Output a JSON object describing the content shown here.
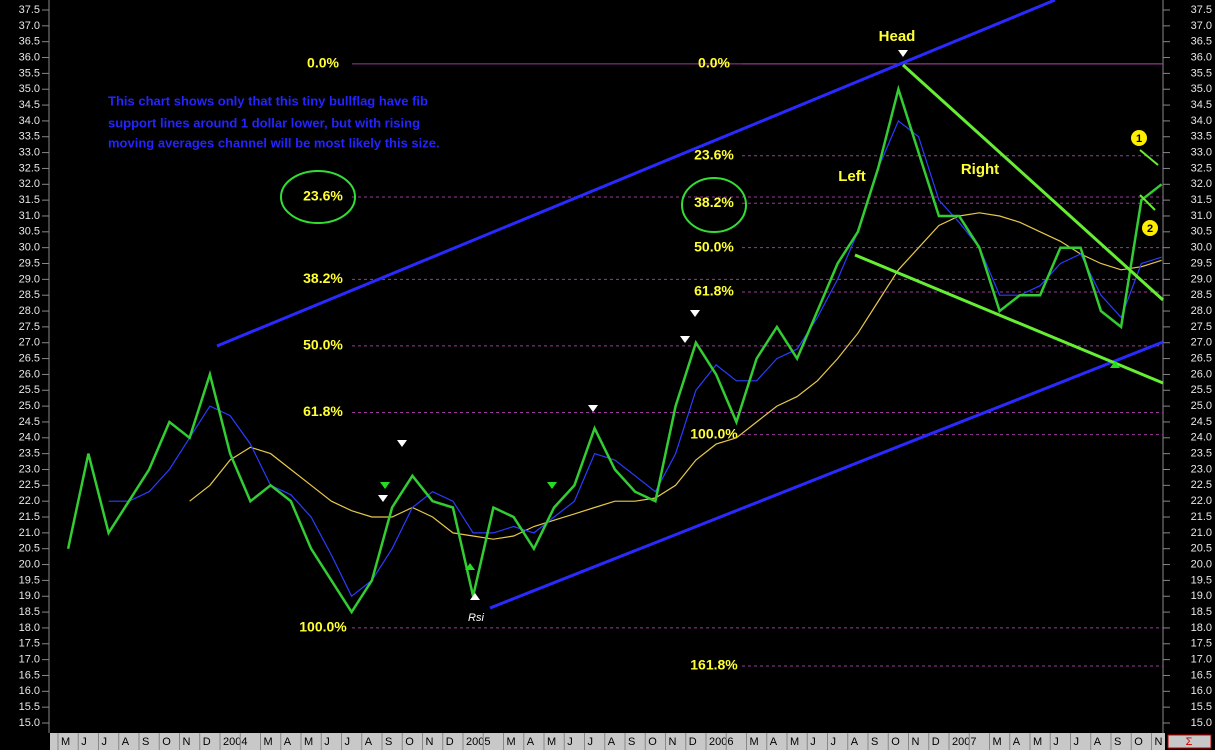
{
  "chart_data": {
    "type": "line",
    "categories": [
      "M",
      "J",
      "J",
      "A",
      "S",
      "O",
      "N",
      "D",
      "2004",
      null,
      "M",
      "A",
      "M",
      "J",
      "J",
      "A",
      "S",
      "O",
      "N",
      "D",
      "2005",
      null,
      "M",
      "A",
      "M",
      "J",
      "J",
      "A",
      "S",
      "O",
      "N",
      "D",
      "2006",
      null,
      "M",
      "A",
      "M",
      "J",
      "J",
      "A",
      "S",
      "O",
      "N",
      "D",
      "2007",
      null,
      "M",
      "A",
      "M",
      "J",
      "J",
      "A",
      "S",
      "O",
      "N"
    ],
    "series": [
      {
        "color": "#33cc33",
        "values": [
          20.5,
          23.5,
          21.0,
          22.0,
          23.0,
          24.5,
          24.0,
          26.0,
          23.5,
          22.0,
          22.5,
          22.0,
          20.5,
          19.5,
          18.5,
          19.5,
          21.8,
          22.8,
          22.0,
          21.8,
          19.0,
          21.8,
          21.5,
          20.5,
          21.8,
          22.5,
          24.3,
          23.0,
          22.3,
          22.0,
          25.0,
          27.0,
          26.0,
          24.5,
          26.5,
          27.5,
          26.5,
          28.0,
          29.5,
          30.5,
          32.5,
          35.0,
          33.0,
          31.0,
          31.0,
          30.0,
          28.0,
          28.5,
          28.5,
          30.0,
          30.0,
          28.0,
          27.5,
          31.5,
          32.0
        ]
      },
      {
        "color": "#2a3cff",
        "values": [
          null,
          null,
          22.0,
          22.0,
          22.3,
          23.0,
          24.0,
          25.0,
          24.7,
          23.8,
          22.5,
          22.2,
          21.5,
          20.3,
          19.0,
          19.5,
          20.5,
          21.8,
          22.3,
          22.0,
          21.0,
          21.0,
          21.2,
          21.0,
          21.5,
          22.0,
          23.5,
          23.3,
          22.8,
          22.3,
          23.5,
          25.5,
          26.3,
          25.8,
          25.8,
          26.5,
          26.8,
          27.8,
          29.0,
          30.5,
          32.5,
          34.0,
          33.5,
          31.5,
          30.8,
          30.0,
          28.5,
          28.5,
          28.8,
          29.5,
          29.8,
          28.5,
          27.8,
          29.5,
          29.7
        ]
      },
      {
        "color": "#e6c84a",
        "values": [
          null,
          null,
          null,
          null,
          null,
          null,
          22.0,
          22.5,
          23.3,
          23.7,
          23.5,
          23.0,
          22.5,
          22.0,
          21.7,
          21.5,
          21.5,
          21.8,
          21.5,
          21.0,
          20.9,
          20.8,
          20.9,
          21.2,
          21.4,
          21.6,
          21.8,
          22.0,
          22.0,
          22.1,
          22.5,
          23.3,
          23.8,
          24.0,
          24.5,
          25.0,
          25.3,
          25.8,
          26.5,
          27.3,
          28.3,
          29.3,
          30.0,
          30.7,
          31.0,
          31.1,
          31.0,
          30.8,
          30.5,
          30.2,
          29.8,
          29.5,
          29.3,
          29.4,
          29.6
        ]
      }
    ],
    "ylim": [
      15.0,
      37.5
    ],
    "yticks": [
      {
        "value": 15.0,
        "label": "15.0"
      },
      {
        "value": 15.5,
        "label": "15.5"
      },
      {
        "value": 16.0,
        "label": "16.0"
      },
      {
        "value": 16.5,
        "label": "16.5"
      },
      {
        "value": 17.0,
        "label": "17.0"
      },
      {
        "value": 17.5,
        "label": "17.5"
      },
      {
        "value": 18.0,
        "label": "18.0"
      },
      {
        "value": 18.5,
        "label": "18.5"
      },
      {
        "value": 19.0,
        "label": "19.0"
      },
      {
        "value": 19.5,
        "label": "19.5"
      },
      {
        "value": 20.0,
        "label": "20.0"
      },
      {
        "value": 20.5,
        "label": "20.5"
      },
      {
        "value": 21.0,
        "label": "21.0"
      },
      {
        "value": 21.5,
        "label": "21.5"
      },
      {
        "value": 22.0,
        "label": "22.0"
      },
      {
        "value": 22.5,
        "label": "22.5"
      },
      {
        "value": 23.0,
        "label": "23.0"
      },
      {
        "value": 23.5,
        "label": "23.5"
      },
      {
        "value": 24.0,
        "label": "24.0"
      },
      {
        "value": 24.5,
        "label": "24.5"
      },
      {
        "value": 25.0,
        "label": "25.0"
      },
      {
        "value": 25.5,
        "label": "25.5"
      },
      {
        "value": 26.0,
        "label": "26.0"
      },
      {
        "value": 26.5,
        "label": "26.5"
      },
      {
        "value": 27.0,
        "label": "27.0"
      },
      {
        "value": 27.5,
        "label": "27.5"
      },
      {
        "value": 28.0,
        "label": "28.0"
      },
      {
        "value": 28.5,
        "label": "28.5"
      },
      {
        "value": 29.0,
        "label": "29.0"
      },
      {
        "value": 29.5,
        "label": "29.5"
      },
      {
        "value": 30.0,
        "label": "30.0"
      },
      {
        "value": 30.5,
        "label": "30.5"
      },
      {
        "value": 31.0,
        "label": "31.0"
      },
      {
        "value": 31.5,
        "label": "31.5"
      },
      {
        "value": 32.0,
        "label": "32.0"
      },
      {
        "value": 32.5,
        "label": "32.5"
      },
      {
        "value": 33.0,
        "label": "33.0"
      },
      {
        "value": 33.5,
        "label": "33.5"
      },
      {
        "value": 34.0,
        "label": "34.0"
      },
      {
        "value": 34.5,
        "label": "34.5"
      },
      {
        "value": 35.0,
        "label": "35.0"
      },
      {
        "value": 35.5,
        "label": "35.5"
      },
      {
        "value": 36.0,
        "label": "36.0"
      },
      {
        "value": 36.5,
        "label": "36.5"
      },
      {
        "value": 37.0,
        "label": "37.0"
      },
      {
        "value": 37.5,
        "label": "37.5"
      }
    ],
    "fib_left": [
      {
        "label": "0.0%",
        "price": 35.8
      },
      {
        "label": "23.6%",
        "price": 31.6
      },
      {
        "label": "38.2%",
        "price": 29.0
      },
      {
        "label": "50.0%",
        "price": 26.9
      },
      {
        "label": "61.8%",
        "price": 24.8
      },
      {
        "label": "100.0%",
        "price": 18.0
      }
    ],
    "fib_right": [
      {
        "label": "0.0%",
        "price": 35.8
      },
      {
        "label": "23.6%",
        "price": 32.9
      },
      {
        "label": "38.2%",
        "price": 31.4
      },
      {
        "label": "50.0%",
        "price": 30.0
      },
      {
        "label": "61.8%",
        "price": 28.6
      },
      {
        "label": "100.0%",
        "price": 24.1
      },
      {
        "label": "161.8%",
        "price": 16.8
      }
    ],
    "note": [
      "This chart shows only that this tiny bullflag have fib",
      "support lines around 1 dollar lower, but with rising",
      "moving averages channel will be most likely this size."
    ],
    "annotations": {
      "head": "Head",
      "left": "Left",
      "right": "Right",
      "rsi": "Rsi",
      "point_1": "1",
      "point_2": "2"
    },
    "corner_label": "Σ"
  }
}
